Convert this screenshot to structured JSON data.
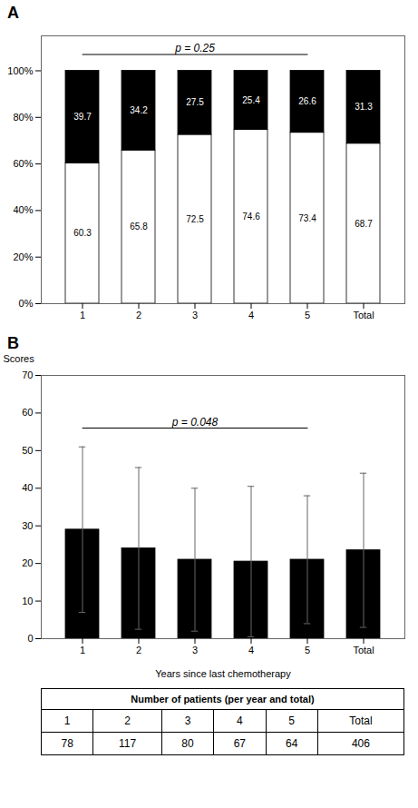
{
  "chart_data": [
    {
      "type": "bar",
      "stacked": true,
      "title": "A",
      "categories": [
        "1",
        "2",
        "3",
        "4",
        "5",
        "Total"
      ],
      "series": [
        {
          "color": "#ffffff",
          "values": [
            60.3,
            65.8,
            72.5,
            74.6,
            73.4,
            68.7
          ]
        },
        {
          "color": "#000000",
          "values": [
            39.7,
            34.2,
            27.5,
            25.4,
            26.6,
            31.3
          ]
        }
      ],
      "ylim": [
        0,
        115
      ],
      "yticks": [
        {
          "value": 0,
          "label": "0%"
        },
        {
          "value": 20,
          "label": "20%"
        },
        {
          "value": 40,
          "label": "40%"
        },
        {
          "value": 60,
          "label": "60%"
        },
        {
          "value": 80,
          "label": "80%"
        },
        {
          "value": 100,
          "label": "100%"
        }
      ],
      "data_labels": true,
      "grid": false,
      "annotations": [
        {
          "text": "p = 0.25",
          "from": "1",
          "to": "5",
          "y": 107
        }
      ]
    },
    {
      "type": "bar",
      "title": "B",
      "categories": [
        "1",
        "2",
        "3",
        "4",
        "5",
        "Total"
      ],
      "values": [
        29.0,
        24.0,
        21.0,
        20.5,
        21.0,
        23.5
      ],
      "lower": [
        7.0,
        2.5,
        2.0,
        0.5,
        4.0,
        3.0
      ],
      "upper": [
        51.0,
        45.5,
        40.0,
        40.5,
        38.0,
        44.0
      ],
      "color": "#000000",
      "ylabel": "Scores",
      "xlabel": "Years since last chemotherapy",
      "ylim": [
        0,
        70
      ],
      "yticks": [
        0,
        10,
        20,
        30,
        40,
        50,
        60,
        70
      ],
      "grid": false,
      "annotations": [
        {
          "text": "p = 0.048",
          "from": "1",
          "to": "5",
          "y": 56
        }
      ]
    },
    {
      "type": "table",
      "title": "Number of patients (per year and total)",
      "categories": [
        "1",
        "2",
        "3",
        "4",
        "5",
        "Total"
      ],
      "values": [
        78,
        117,
        80,
        67,
        64,
        406
      ]
    }
  ]
}
